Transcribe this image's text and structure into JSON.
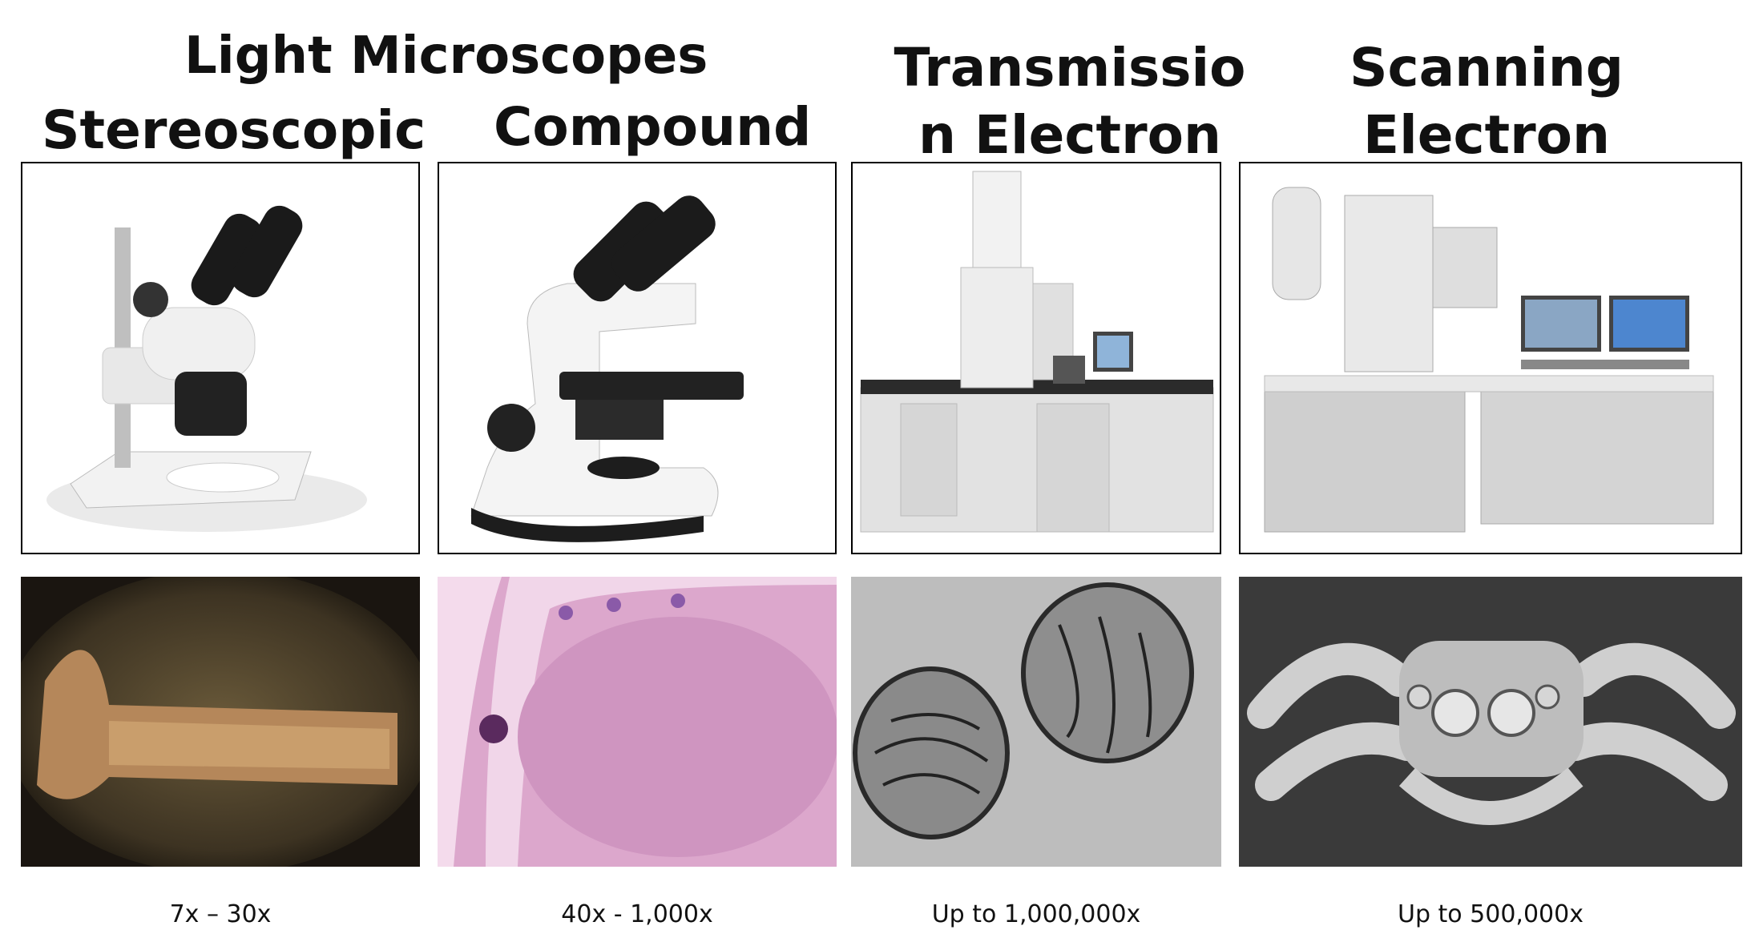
{
  "group_title": "Light Microscopes",
  "columns": [
    {
      "title_lines": [
        "Stereoscopic"
      ],
      "magnification": "7x – 30x",
      "instrument_icon": "stereo-microscope-photo",
      "sample_icon": "salamander-specimen-photo"
    },
    {
      "title_lines": [
        "Compound"
      ],
      "magnification": "40x - 1,000x",
      "instrument_icon": "compound-microscope-photo",
      "sample_icon": "stained-tissue-photo"
    },
    {
      "title_lines": [
        "Transmissio",
        "n Electron"
      ],
      "magnification": "Up to 1,000,000x",
      "instrument_icon": "tem-instrument-photo",
      "sample_icon": "mitochondria-micrograph"
    },
    {
      "title_lines": [
        "Scanning",
        "Electron"
      ],
      "magnification": "Up to 500,000x",
      "instrument_icon": "sem-instrument-photo",
      "sample_icon": "jumping-spider-micrograph"
    }
  ]
}
